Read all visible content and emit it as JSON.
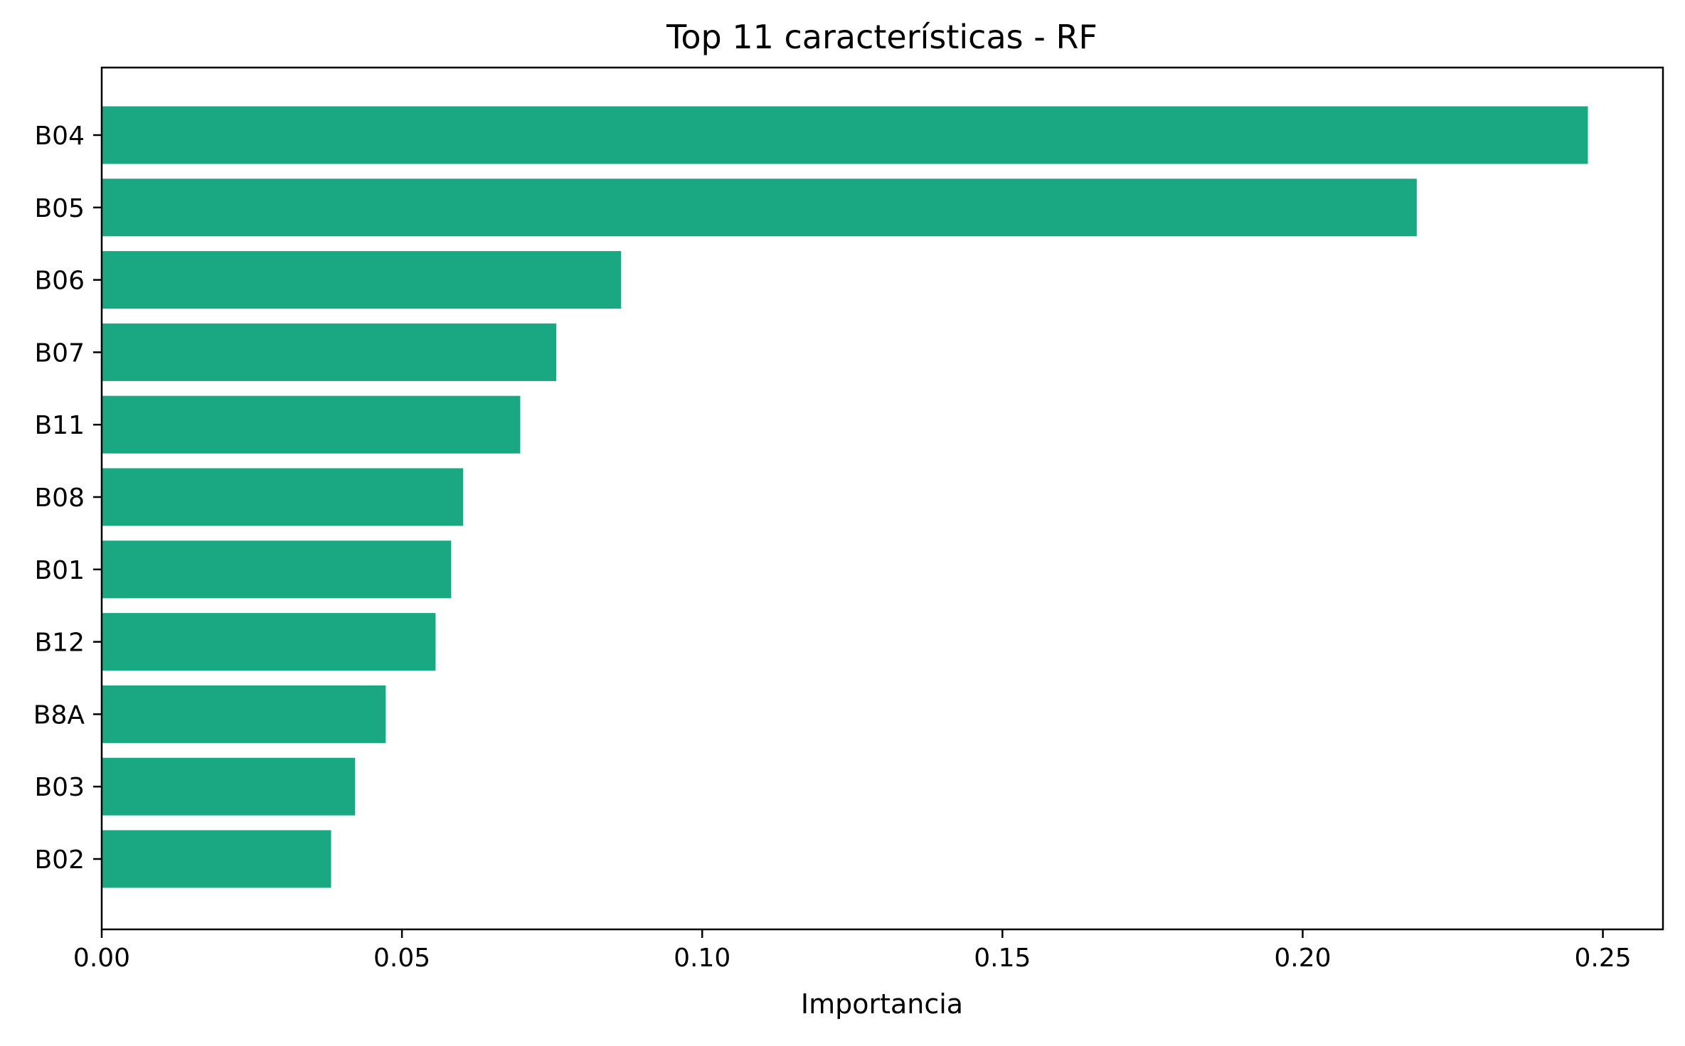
{
  "chart_data": {
    "type": "bar",
    "orientation": "horizontal",
    "title": "Top 11 características - RF",
    "xlabel": "Importancia",
    "ylabel": "",
    "categories": [
      "B04",
      "B05",
      "B06",
      "B07",
      "B11",
      "B08",
      "B01",
      "B12",
      "B8A",
      "B03",
      "B02"
    ],
    "values": [
      0.2475,
      0.219,
      0.0865,
      0.0757,
      0.0697,
      0.0602,
      0.0582,
      0.0556,
      0.0473,
      0.0422,
      0.0382
    ],
    "xlim": [
      0,
      0.26
    ],
    "xticks": [
      "0.00",
      "0.05",
      "0.10",
      "0.15",
      "0.20",
      "0.25"
    ],
    "bar_color": "#19a882",
    "grid": false,
    "legend": "none"
  }
}
